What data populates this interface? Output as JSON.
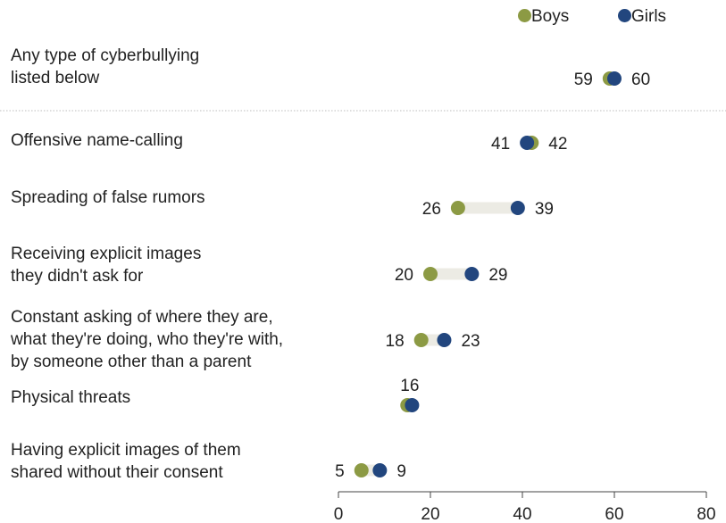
{
  "chart_data": {
    "type": "dot",
    "series": [
      {
        "name": "Boys",
        "color": "#8c9a44",
        "values": [
          59,
          42,
          26,
          20,
          18,
          15,
          5
        ]
      },
      {
        "name": "Girls",
        "color": "#22467e",
        "values": [
          60,
          41,
          39,
          29,
          23,
          16,
          9
        ]
      }
    ],
    "categories": [
      "Any type of cyberbullying\nlisted below",
      "Offensive name-calling",
      "Spreading of false rumors",
      "Receiving explicit images\nthey didn't ask for",
      "Constant asking of where they are,\nwhat they're doing, who they're with,\nby someone other than a parent",
      "Physical threats",
      "Having explicit images of them\nshared without their consent"
    ],
    "labels": [
      {
        "left": "59",
        "right": "60"
      },
      {
        "left": "41",
        "right": "42"
      },
      {
        "left": "26",
        "right": "39"
      },
      {
        "left": "20",
        "right": "29"
      },
      {
        "left": "18",
        "right": "23"
      },
      {
        "top": "16"
      },
      {
        "left": "5",
        "right": "9"
      }
    ],
    "xlim": [
      0,
      80
    ],
    "xticks": [
      "0",
      "20",
      "40",
      "60",
      "80"
    ],
    "legend_position": "top-right",
    "connector_color": "#ecebe4"
  }
}
